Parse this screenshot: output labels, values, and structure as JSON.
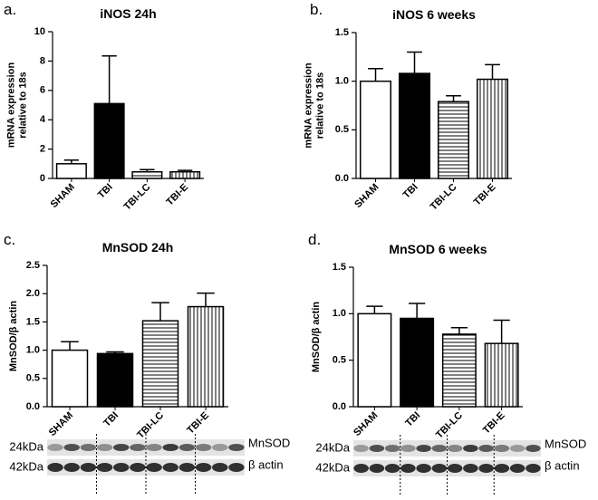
{
  "chart_data": [
    {
      "type": "bar",
      "panel": "a.",
      "title": "iNOS 24h",
      "ylabel": [
        "mRNA expression",
        "relative to 18s"
      ],
      "categories": [
        "SHAM",
        "TBI",
        "TBI-LC",
        "TBI-E"
      ],
      "values": [
        1.0,
        5.1,
        0.45,
        0.45
      ],
      "errors": [
        0.25,
        3.25,
        0.15,
        0.1
      ],
      "fills": [
        "white",
        "black",
        "hlines",
        "vlines"
      ],
      "ylim": [
        0,
        10
      ],
      "yticks": [
        0,
        2,
        4,
        6,
        8,
        10
      ]
    },
    {
      "type": "bar",
      "panel": "b.",
      "title": "iNOS 6 weeks",
      "ylabel": [
        "mRNA expression",
        "relative to 18s"
      ],
      "categories": [
        "SHAM",
        "TBI",
        "TBI-LC",
        "TBI-E"
      ],
      "values": [
        1.0,
        1.08,
        0.79,
        1.02
      ],
      "errors": [
        0.13,
        0.22,
        0.06,
        0.15
      ],
      "fills": [
        "white",
        "black",
        "hlines",
        "vlines"
      ],
      "ylim": [
        0,
        1.5
      ],
      "yticks": [
        {
          "value": 0,
          "label": "0.0"
        },
        {
          "value": 0.5,
          "label": "0.5"
        },
        {
          "value": 1,
          "label": "1.0"
        },
        {
          "value": 1.5,
          "label": "1.5"
        }
      ]
    },
    {
      "type": "bar",
      "panel": "c.",
      "title": "MnSOD 24h",
      "ylabel": [
        "MnSOD/β actin"
      ],
      "categories": [
        "SHAM",
        "TBI",
        "TBI-LC",
        "TBI-E"
      ],
      "values": [
        1.0,
        0.94,
        1.52,
        1.77
      ],
      "errors": [
        0.15,
        0.03,
        0.32,
        0.24
      ],
      "fills": [
        "white",
        "black",
        "hlines",
        "vlines"
      ],
      "ylim": [
        0,
        2.5
      ],
      "yticks": [
        {
          "value": 0,
          "label": "0.0"
        },
        {
          "value": 0.5,
          "label": "0.5"
        },
        {
          "value": 1,
          "label": "1.0"
        },
        {
          "value": 1.5,
          "label": "1.5"
        },
        {
          "value": 2,
          "label": "2.0"
        },
        {
          "value": 2.5,
          "label": "2.5"
        }
      ],
      "blot": {
        "sizes": [
          "24kDa",
          "42kDa"
        ],
        "proteins": [
          "MnSOD",
          "β actin"
        ]
      }
    },
    {
      "type": "bar",
      "panel": "d.",
      "title": "MnSOD 6 weeks",
      "ylabel": [
        "MnSOD/β actin"
      ],
      "categories": [
        "SHAM",
        "TBI",
        "TBI-LC",
        "TBI-E"
      ],
      "values": [
        1.0,
        0.95,
        0.78,
        0.68
      ],
      "errors": [
        0.08,
        0.16,
        0.07,
        0.25
      ],
      "fills": [
        "white",
        "black",
        "hlines",
        "vlines"
      ],
      "ylim": [
        0,
        1.5
      ],
      "yticks": [
        {
          "value": 0,
          "label": "0.0"
        },
        {
          "value": 0.5,
          "label": "0.5"
        },
        {
          "value": 1,
          "label": "1.0"
        },
        {
          "value": 1.5,
          "label": "1.5"
        }
      ],
      "blot": {
        "sizes": [
          "24kDa",
          "42kDa"
        ],
        "proteins": [
          "MnSOD",
          "β actin"
        ]
      }
    }
  ]
}
